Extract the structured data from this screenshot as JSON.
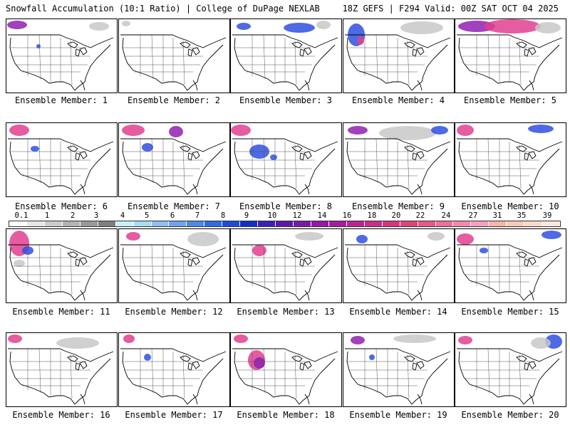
{
  "header": {
    "left": "Snowfall Accumulation (10:1 Ratio) | College of DuPage NEXLAB",
    "right": "18Z GEFS | F294 Valid: 00Z SAT OCT 04 2025"
  },
  "panel_label_prefix": "Ensemble Member: ",
  "members": [
    1,
    2,
    3,
    4,
    5,
    6,
    7,
    8,
    9,
    10,
    11,
    12,
    13,
    14,
    15,
    16,
    17,
    18,
    19,
    20
  ],
  "colorbar": {
    "ticks": [
      "0.1",
      "1",
      "2",
      "3",
      "4",
      "5",
      "6",
      "7",
      "8",
      "9",
      "10",
      "12",
      "14",
      "16",
      "18",
      "20",
      "22",
      "24",
      "27",
      "31",
      "35",
      "39"
    ],
    "colors": [
      "#ffffff",
      "#e6e6e6",
      "#cccccc",
      "#b3b3b3",
      "#999999",
      "#7f7f7f",
      "#c8f0f8",
      "#a8dcf4",
      "#8cc0f0",
      "#6ea4ec",
      "#5088e8",
      "#306ce0",
      "#1c4cd8",
      "#1030c8",
      "#3a20b8",
      "#5a18b0",
      "#7a18a8",
      "#9418a4",
      "#a81c9c",
      "#bc2494",
      "#cc2c8c",
      "#d83480",
      "#e04478",
      "#e85888",
      "#f07098",
      "#f488ac",
      "#f8a0bc",
      "#f8b4a8",
      "#fcc8b8",
      "#fcd8c8",
      "#fce8d8"
    ]
  },
  "map_colors": {
    "land_line": "#000000",
    "snow_gray": "#c8c8c8",
    "snow_blue": "#3050e0",
    "snow_purple": "#9020b0",
    "snow_pink": "#e04090"
  }
}
